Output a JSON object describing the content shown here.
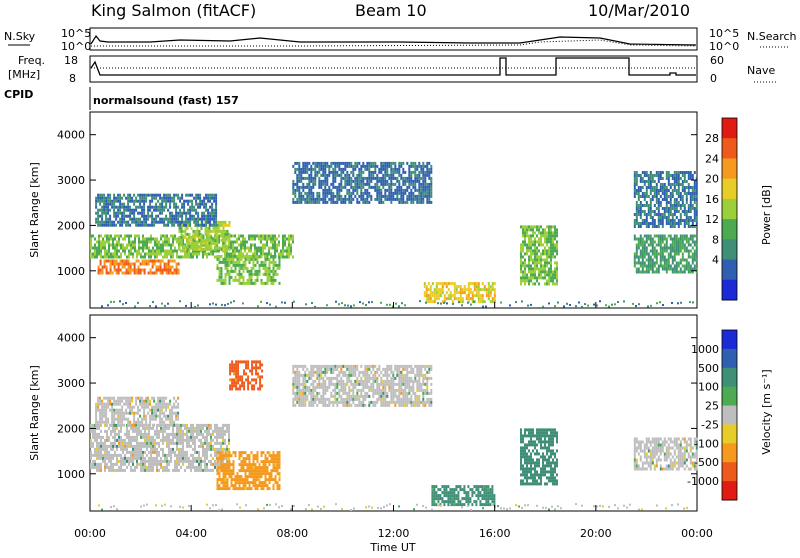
{
  "header": {
    "radar": "King Salmon (fitACF)",
    "beam": "Beam 10",
    "date": "10/Mar/2010"
  },
  "summary": {
    "nsky_label": "N.Sky",
    "nsearch_label": "N.Search",
    "freq_label_line1": "Freq.",
    "freq_label_line2": "[MHz]",
    "nave_label": "Nave",
    "cpid_label": "CPID",
    "cpid_value": "normalsound (fast) 157",
    "noise_left_ticks": [
      "10^5",
      "10^0"
    ],
    "noise_right_ticks": [
      "10^5",
      "10^0"
    ],
    "freq_ticks": [
      "18",
      "8"
    ],
    "nave_ticks": [
      "60",
      "0"
    ]
  },
  "colors": {
    "power_scale": [
      "#1a2bd6",
      "#2f5fb0",
      "#3f8f78",
      "#4cab52",
      "#9ccf3a",
      "#e8cc27",
      "#f59a1f",
      "#ee5a1c",
      "#e01b14"
    ],
    "velocity_scale": [
      "#1a2bd6",
      "#2f5fb0",
      "#3f8f78",
      "#4cab52",
      "#bebebe",
      "#e8cc27",
      "#f59a1f",
      "#ee5a1c",
      "#e01b14"
    ]
  },
  "chart_data": [
    {
      "type": "heatmap",
      "panel": "power",
      "ylabel": "Slant Range [km]",
      "colorbar_label": "Power [dB]",
      "colorbar_ticks": [
        "28",
        "24",
        "20",
        "16",
        "12",
        "8",
        "4"
      ],
      "y_ticks": [
        "4000",
        "3000",
        "2000",
        "1000"
      ],
      "ylim": [
        180,
        4500
      ],
      "x_range_hours": [
        0,
        24
      ],
      "regions": [
        {
          "t0": 0.0,
          "t1": 8.0,
          "r0": 1300,
          "r1": 1800,
          "value": 14
        },
        {
          "t0": 0.3,
          "t1": 3.5,
          "r0": 950,
          "r1": 1250,
          "value": 26
        },
        {
          "t0": 3.5,
          "t1": 5.5,
          "r0": 1500,
          "r1": 2100,
          "value": 16
        },
        {
          "t0": 5.0,
          "t1": 7.5,
          "r0": 700,
          "r1": 1350,
          "value": 14
        },
        {
          "t0": 0.2,
          "t1": 5.0,
          "r0": 2000,
          "r1": 2700,
          "value": 6
        },
        {
          "t0": 8.0,
          "t1": 13.5,
          "r0": 2500,
          "r1": 3400,
          "value": 5
        },
        {
          "t0": 13.2,
          "t1": 16.0,
          "r0": 300,
          "r1": 750,
          "value": 20
        },
        {
          "t0": 17.0,
          "t1": 18.5,
          "r0": 700,
          "r1": 2000,
          "value": 14
        },
        {
          "t0": 21.5,
          "t1": 24.0,
          "r0": 1000,
          "r1": 1800,
          "value": 10
        },
        {
          "t0": 21.5,
          "t1": 24.0,
          "r0": 2000,
          "r1": 3200,
          "value": 6
        }
      ]
    },
    {
      "type": "heatmap",
      "panel": "velocity",
      "ylabel": "Slant Range [km]",
      "colorbar_label": "Velocity [m s⁻¹]",
      "colorbar_ticks": [
        "1000",
        "500",
        "100",
        "25",
        "-25",
        "-100",
        "-500",
        "-1000"
      ],
      "y_ticks": [
        "4000",
        "3000",
        "2000",
        "1000"
      ],
      "ylim": [
        180,
        4500
      ],
      "x_range_hours": [
        0,
        24
      ],
      "regions": [
        {
          "t0": 0.0,
          "t1": 5.5,
          "r0": 1100,
          "r1": 2100,
          "value": 0
        },
        {
          "t0": 0.2,
          "t1": 3.5,
          "r0": 2100,
          "r1": 2700,
          "value": 0
        },
        {
          "t0": 5.0,
          "t1": 7.5,
          "r0": 700,
          "r1": 1500,
          "value": -200
        },
        {
          "t0": 5.5,
          "t1": 6.8,
          "r0": 2900,
          "r1": 3500,
          "value": -600
        },
        {
          "t0": 8.0,
          "t1": 13.5,
          "r0": 2500,
          "r1": 3400,
          "value": 0
        },
        {
          "t0": 13.5,
          "t1": 16.0,
          "r0": 300,
          "r1": 750,
          "value": 150
        },
        {
          "t0": 17.0,
          "t1": 18.5,
          "r0": 800,
          "r1": 2000,
          "value": 300
        },
        {
          "t0": 21.5,
          "t1": 24.0,
          "r0": 1100,
          "r1": 1800,
          "value": 0
        }
      ]
    }
  ],
  "xaxis": {
    "label": "Time UT",
    "ticks": [
      "00:00",
      "04:00",
      "08:00",
      "12:00",
      "16:00",
      "20:00",
      "00:00"
    ]
  }
}
